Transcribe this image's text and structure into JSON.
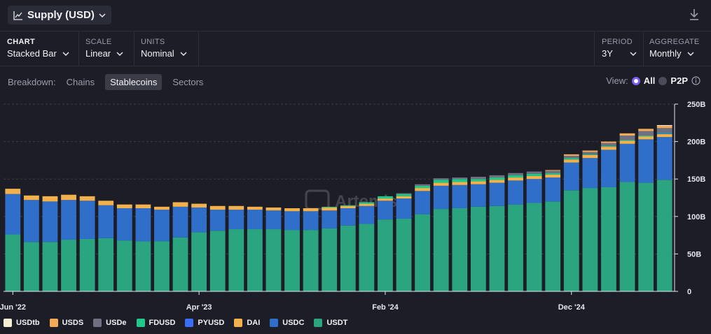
{
  "header": {
    "title": "Supply (USD)"
  },
  "controls": {
    "chart": {
      "label": "CHART",
      "value": "Stacked Bar"
    },
    "scale": {
      "label": "SCALE",
      "value": "Linear"
    },
    "units": {
      "label": "UNITS",
      "value": "Nominal"
    },
    "period": {
      "label": "PERIOD",
      "value": "3Y"
    },
    "aggregate": {
      "label": "AGGREGATE",
      "value": "Monthly"
    }
  },
  "breakdown": {
    "label": "Breakdown:",
    "tabs": [
      "Chains",
      "Stablecoins",
      "Sectors"
    ],
    "active": "Stablecoins"
  },
  "view": {
    "label": "View:",
    "options": [
      "All",
      "P2P"
    ],
    "selected": "All"
  },
  "watermark": "Artemis",
  "chart_data": {
    "type": "bar",
    "stacked": true,
    "unit": "B",
    "ylim": [
      0,
      250
    ],
    "yticks": [
      "0",
      "50B",
      "100B",
      "150B",
      "200B",
      "250B"
    ],
    "xtick_labels": [
      {
        "index": 0,
        "label": "Jun '22"
      },
      {
        "index": 10,
        "label": "Apr '23"
      },
      {
        "index": 20,
        "label": "Feb '24"
      },
      {
        "index": 30,
        "label": "Dec '24"
      }
    ],
    "grid": true,
    "legend_position": "bottom-left",
    "series": [
      {
        "name": "USDT",
        "color": "#2aa57f",
        "values": [
          76,
          66,
          66,
          69,
          70,
          71,
          68,
          67,
          67,
          72,
          79,
          81,
          83,
          83,
          83,
          82,
          82,
          84,
          88,
          90,
          96,
          97,
          103,
          110,
          111,
          113,
          114,
          116,
          118,
          120,
          135,
          138,
          139,
          146,
          145,
          149
        ]
      },
      {
        "name": "USDC",
        "color": "#2f6fc9",
        "values": [
          54,
          56,
          54,
          53,
          51,
          44,
          43,
          44,
          42,
          41,
          33,
          28,
          26,
          26,
          25,
          25,
          25,
          24,
          23,
          24,
          25,
          27,
          31,
          31,
          31,
          30,
          31,
          32,
          32,
          32,
          37,
          40,
          50,
          51,
          58,
          57
        ]
      },
      {
        "name": "DAI",
        "color": "#f2b14c",
        "values": [
          7,
          6,
          7,
          7,
          6,
          6,
          5,
          5,
          4,
          6,
          5,
          5,
          5,
          4,
          4,
          4,
          4,
          4,
          3,
          3,
          3,
          3,
          4,
          4,
          4,
          4,
          4,
          4,
          4,
          4,
          4,
          4,
          4,
          4,
          4,
          4
        ]
      },
      {
        "name": "PYUSD",
        "color": "#3b6ef5",
        "values": [
          0,
          0,
          0,
          0,
          0,
          0,
          0,
          0,
          0,
          0,
          0,
          0,
          0,
          0,
          0,
          0,
          0,
          0,
          0,
          0,
          0,
          0,
          0,
          0,
          0,
          0,
          0,
          0,
          0,
          0,
          0,
          0,
          0,
          0,
          0,
          1
        ]
      },
      {
        "name": "FDUSD",
        "color": "#1fc98a",
        "values": [
          0,
          0,
          0,
          0,
          0,
          0,
          0,
          0,
          0,
          0,
          0,
          0,
          0,
          0,
          0,
          0,
          0,
          1,
          1,
          2,
          3,
          3,
          3,
          4,
          4,
          3,
          3,
          3,
          3,
          2,
          2,
          1,
          1,
          1,
          1,
          1
        ]
      },
      {
        "name": "USDe",
        "color": "#6f7183",
        "values": [
          0,
          0,
          0,
          0,
          0,
          0,
          0,
          0,
          0,
          0,
          0,
          0,
          0,
          0,
          0,
          0,
          0,
          0,
          0,
          0,
          0,
          1,
          2,
          2,
          2,
          3,
          3,
          3,
          3,
          3,
          3,
          3,
          4,
          6,
          6,
          6
        ]
      },
      {
        "name": "USDS",
        "color": "#f4a957",
        "values": [
          0,
          0,
          0,
          0,
          0,
          0,
          0,
          0,
          0,
          0,
          0,
          0,
          0,
          0,
          0,
          0,
          0,
          0,
          0,
          0,
          0,
          0,
          0,
          0,
          0,
          0,
          0,
          0,
          0,
          1,
          2,
          2,
          2,
          3,
          3,
          3
        ]
      },
      {
        "name": "USDtb",
        "color": "#f7efd2",
        "values": [
          0,
          0,
          0,
          0,
          0,
          0,
          0,
          0,
          0,
          0,
          0,
          0,
          0,
          0,
          0,
          0,
          0,
          0,
          0,
          0,
          0,
          0,
          0,
          0,
          0,
          0,
          0,
          0,
          0,
          0,
          0,
          0,
          0,
          0,
          0,
          1
        ]
      }
    ]
  }
}
